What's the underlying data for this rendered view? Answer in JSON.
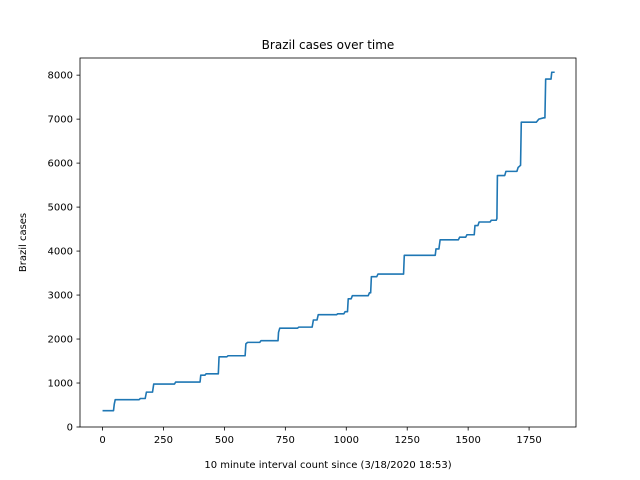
{
  "chart_data": {
    "type": "line",
    "title": "Brazil cases over time",
    "xlabel": "10 minute interval count since (3/18/2020 18:53)",
    "ylabel": "Brazil cases",
    "xlim": [
      -92.5,
      1942.5
    ],
    "ylim": [
      0,
      8390
    ],
    "x_ticks": [
      0,
      250,
      500,
      750,
      1000,
      1250,
      1500,
      1750
    ],
    "y_ticks": [
      0,
      1000,
      2000,
      3000,
      4000,
      5000,
      6000,
      7000,
      8000
    ],
    "grid": false,
    "line_color": "#1f77b4",
    "series": [
      {
        "points": [
          [
            0,
            372
          ],
          [
            45,
            372
          ],
          [
            48,
            515
          ],
          [
            52,
            621
          ],
          [
            58,
            621
          ],
          [
            150,
            621
          ],
          [
            155,
            648
          ],
          [
            175,
            648
          ],
          [
            180,
            793
          ],
          [
            205,
            793
          ],
          [
            210,
            977
          ],
          [
            295,
            977
          ],
          [
            300,
            1021
          ],
          [
            400,
            1021
          ],
          [
            403,
            1178
          ],
          [
            420,
            1178
          ],
          [
            425,
            1210
          ],
          [
            475,
            1210
          ],
          [
            478,
            1596
          ],
          [
            510,
            1596
          ],
          [
            515,
            1620
          ],
          [
            585,
            1620
          ],
          [
            588,
            1890
          ],
          [
            595,
            1924
          ],
          [
            645,
            1924
          ],
          [
            650,
            1962
          ],
          [
            720,
            1962
          ],
          [
            722,
            2150
          ],
          [
            727,
            2247
          ],
          [
            800,
            2247
          ],
          [
            805,
            2271
          ],
          [
            860,
            2271
          ],
          [
            865,
            2433
          ],
          [
            880,
            2433
          ],
          [
            885,
            2554
          ],
          [
            960,
            2554
          ],
          [
            965,
            2574
          ],
          [
            990,
            2574
          ],
          [
            995,
            2621
          ],
          [
            1005,
            2621
          ],
          [
            1008,
            2915
          ],
          [
            1020,
            2915
          ],
          [
            1025,
            2985
          ],
          [
            1090,
            2985
          ],
          [
            1095,
            3050
          ],
          [
            1100,
            3050
          ],
          [
            1103,
            3417
          ],
          [
            1125,
            3417
          ],
          [
            1130,
            3477
          ],
          [
            1235,
            3477
          ],
          [
            1238,
            3903
          ],
          [
            1365,
            3903
          ],
          [
            1368,
            4048
          ],
          [
            1380,
            4048
          ],
          [
            1385,
            4256
          ],
          [
            1460,
            4256
          ],
          [
            1465,
            4316
          ],
          [
            1490,
            4316
          ],
          [
            1495,
            4371
          ],
          [
            1525,
            4371
          ],
          [
            1528,
            4579
          ],
          [
            1540,
            4579
          ],
          [
            1545,
            4661
          ],
          [
            1590,
            4661
          ],
          [
            1595,
            4701
          ],
          [
            1615,
            4701
          ],
          [
            1618,
            4739
          ],
          [
            1620,
            5717
          ],
          [
            1650,
            5717
          ],
          [
            1655,
            5812
          ],
          [
            1700,
            5812
          ],
          [
            1705,
            5900
          ],
          [
            1715,
            5950
          ],
          [
            1718,
            6931
          ],
          [
            1780,
            6931
          ],
          [
            1790,
            7000
          ],
          [
            1810,
            7030
          ],
          [
            1815,
            7030
          ],
          [
            1818,
            7910
          ],
          [
            1840,
            7910
          ],
          [
            1843,
            8066
          ],
          [
            1855,
            8066
          ]
        ]
      }
    ]
  }
}
